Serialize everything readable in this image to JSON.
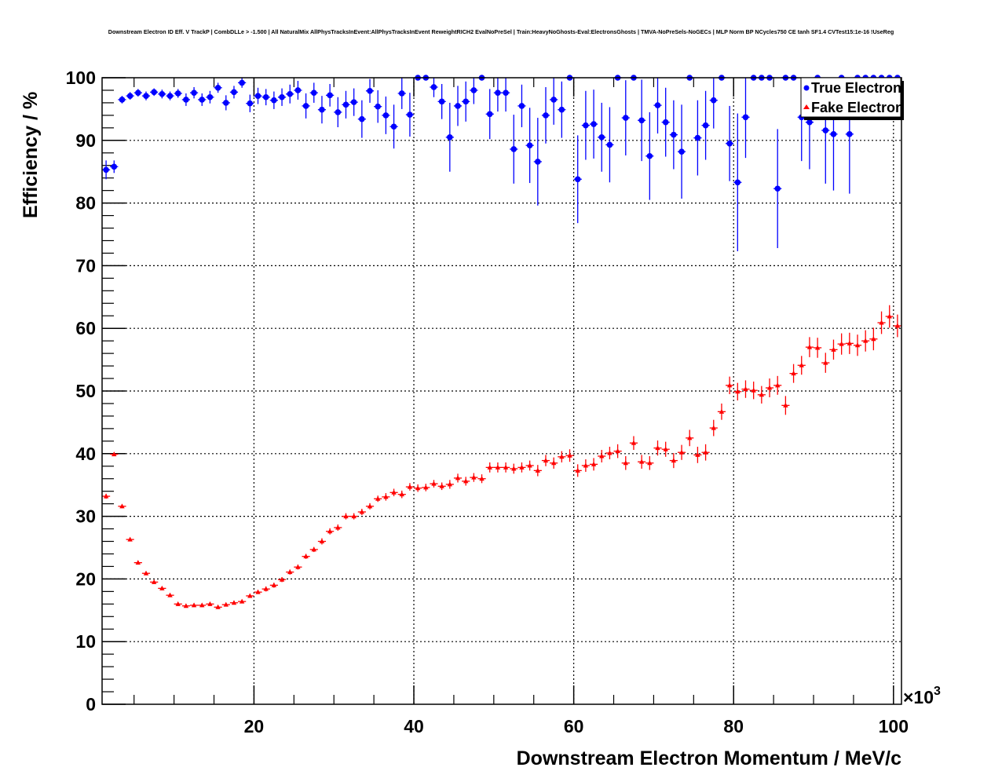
{
  "chart_data": {
    "type": "scatter",
    "title": "Downstream Electron ID Eff. V TrackP | CombDLLe > -1.500 | All NaturalMix AllPhysTracksInEvent:AllPhysTracksInEvent ReweightRICH2 EvalNoPreSel | Train:HeavyNoGhosts-Eval:ElectronsGhosts | TMVA-NoPreSels-NoGECs | MLP Norm BP NCycles750 CE tanh SF1.4 CVTest15:1e-16 !UseReg",
    "xlabel": "Downstream Electron Momentum / MeV/c",
    "ylabel": "Efficiency / %",
    "x_multiplier_label": "×10",
    "x_multiplier_exp": "3",
    "xlim": [
      1,
      101
    ],
    "ylim": [
      0,
      100
    ],
    "xticks": [
      "20",
      "40",
      "60",
      "80",
      "100"
    ],
    "yticks": [
      "0",
      "10",
      "20",
      "30",
      "40",
      "50",
      "60",
      "70",
      "80",
      "90",
      "100"
    ],
    "grid": true,
    "legend_position": "top-right",
    "x_bin_start": 1.5,
    "x_bin_width": 1,
    "series": [
      {
        "name": "True Electron",
        "color": "#0000ff",
        "marker": "circle",
        "values": [
          85.3,
          85.8,
          96.5,
          97.1,
          97.6,
          97.1,
          97.7,
          97.4,
          97.1,
          97.5,
          96.5,
          97.6,
          96.5,
          96.9,
          98.4,
          96.0,
          97.7,
          99.2,
          95.9,
          97.1,
          96.9,
          96.4,
          96.9,
          97.4,
          98.0,
          95.5,
          97.6,
          94.9,
          97.2,
          94.5,
          95.7,
          96.1,
          93.4,
          97.9,
          95.4,
          94.0,
          92.2,
          97.5,
          94.1,
          100,
          100,
          98.5,
          96.2,
          90.5,
          95.5,
          96.2,
          98.0,
          100,
          94.2,
          97.6,
          97.6,
          88.6,
          95.5,
          89.2,
          86.6,
          94.0,
          96.5,
          94.9,
          100,
          83.8,
          92.4,
          92.6,
          90.5,
          89.3,
          100,
          93.6,
          100,
          93.2,
          87.5,
          95.6,
          92.9,
          90.9,
          88.2,
          100,
          90.4,
          92.4,
          96.4,
          100,
          89.5,
          83.3,
          93.7,
          100,
          100,
          100,
          82.3,
          100,
          100,
          93.7,
          92.9,
          100,
          91.6,
          91.0,
          100,
          91.0,
          100,
          100,
          100,
          100,
          100,
          100
        ],
        "errors": [
          1.5,
          1.0,
          0.6,
          0.6,
          0.6,
          0.7,
          0.6,
          0.7,
          0.7,
          0.7,
          1.0,
          0.9,
          1.0,
          1.0,
          0.8,
          1.2,
          1.0,
          0.8,
          1.4,
          1.3,
          1.3,
          1.4,
          1.4,
          1.5,
          1.5,
          2.0,
          1.6,
          2.2,
          1.8,
          2.4,
          2.2,
          2.2,
          3.0,
          1.9,
          2.6,
          3.0,
          3.5,
          2.5,
          3.5,
          0,
          0,
          1.6,
          2.8,
          5.5,
          3.2,
          3.2,
          2.2,
          0,
          4.0,
          3.0,
          3.0,
          5.5,
          3.4,
          6.0,
          7.0,
          4.5,
          4.0,
          4.5,
          0,
          7.0,
          5.5,
          5.5,
          5.5,
          6.0,
          0,
          6.0,
          0,
          6.5,
          7.0,
          4.5,
          5.5,
          5.5,
          7.5,
          0,
          6.0,
          5.5,
          4.5,
          0,
          6.0,
          11.0,
          6.5,
          0,
          0,
          0,
          9.5,
          0,
          0,
          7.0,
          7.5,
          0,
          8.5,
          9.0,
          0,
          9.5,
          0,
          0,
          0,
          0,
          0,
          0
        ]
      },
      {
        "name": "Fake Electron",
        "color": "#ff0000",
        "marker": "triangle",
        "values": [
          33.2,
          39.9,
          31.6,
          26.3,
          22.6,
          20.9,
          19.5,
          18.5,
          17.4,
          16.0,
          15.7,
          15.8,
          15.8,
          16.0,
          15.5,
          15.9,
          16.2,
          16.4,
          17.3,
          17.9,
          18.4,
          19.0,
          19.9,
          21.1,
          21.9,
          23.6,
          24.7,
          26.0,
          27.6,
          28.2,
          30.0,
          30.0,
          30.7,
          31.6,
          32.8,
          33.1,
          33.8,
          33.5,
          34.7,
          34.5,
          34.6,
          35.2,
          34.8,
          35.1,
          36.1,
          35.6,
          36.2,
          36.0,
          37.8,
          37.8,
          37.8,
          37.6,
          37.8,
          38.1,
          37.3,
          38.9,
          38.5,
          39.5,
          39.7,
          37.3,
          38.1,
          38.3,
          39.6,
          40.1,
          40.4,
          38.5,
          41.7,
          38.7,
          38.5,
          40.9,
          40.7,
          38.9,
          40.2,
          42.5,
          39.8,
          40.2,
          44.1,
          46.7,
          50.9,
          49.9,
          50.3,
          50.1,
          49.4,
          50.5,
          50.9,
          47.7,
          52.8,
          54.1,
          57.0,
          56.9,
          54.5,
          56.6,
          57.5,
          57.6,
          57.3,
          58.0,
          58.3,
          60.9,
          61.9,
          60.4
        ],
        "errors": [
          0.4,
          0.3,
          0.3,
          0.3,
          0.3,
          0.3,
          0.3,
          0.3,
          0.3,
          0.3,
          0.3,
          0.3,
          0.3,
          0.3,
          0.3,
          0.3,
          0.3,
          0.3,
          0.3,
          0.3,
          0.4,
          0.4,
          0.4,
          0.4,
          0.4,
          0.4,
          0.4,
          0.5,
          0.5,
          0.5,
          0.5,
          0.5,
          0.5,
          0.5,
          0.5,
          0.6,
          0.6,
          0.6,
          0.6,
          0.6,
          0.6,
          0.6,
          0.6,
          0.7,
          0.7,
          0.7,
          0.7,
          0.7,
          0.8,
          0.8,
          0.8,
          0.8,
          0.8,
          0.8,
          0.9,
          0.9,
          0.9,
          0.9,
          1.0,
          1.0,
          1.0,
          1.0,
          1.0,
          1.0,
          1.1,
          1.1,
          1.1,
          1.1,
          1.1,
          1.2,
          1.2,
          1.2,
          1.2,
          1.3,
          1.3,
          1.3,
          1.3,
          1.3,
          1.4,
          1.4,
          1.4,
          1.4,
          1.4,
          1.5,
          1.5,
          1.5,
          1.5,
          1.5,
          1.6,
          1.6,
          1.6,
          1.6,
          1.7,
          1.7,
          1.7,
          1.7,
          1.8,
          1.8,
          1.8,
          1.8
        ]
      }
    ]
  }
}
